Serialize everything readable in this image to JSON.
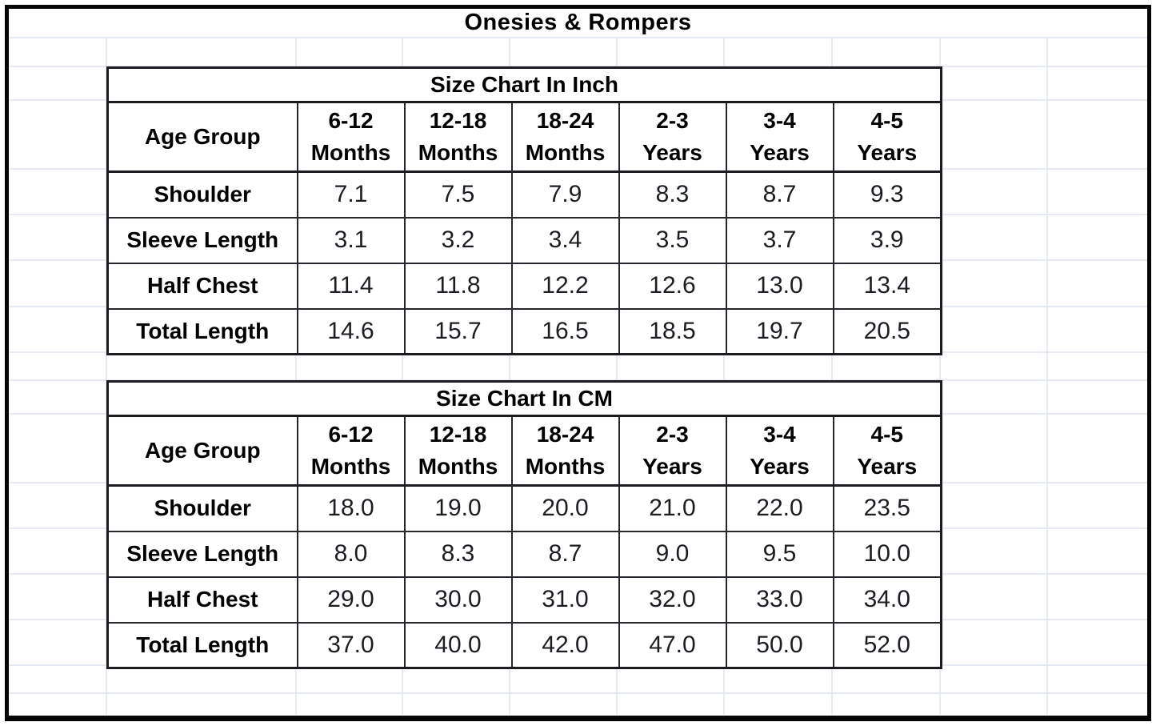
{
  "title": "Onesies & Rompers",
  "tables": [
    {
      "caption": "Size Chart In Inch",
      "corner_label": "Age Group",
      "age_columns": [
        {
          "range": "6-12",
          "unit": "Months"
        },
        {
          "range": "12-18",
          "unit": "Months"
        },
        {
          "range": "18-24",
          "unit": "Months"
        },
        {
          "range": "2-3",
          "unit": "Years"
        },
        {
          "range": "3-4",
          "unit": "Years"
        },
        {
          "range": "4-5",
          "unit": "Years"
        }
      ],
      "rows": [
        {
          "label": "Shoulder",
          "values": [
            "7.1",
            "7.5",
            "7.9",
            "8.3",
            "8.7",
            "9.3"
          ]
        },
        {
          "label": "Sleeve Length",
          "values": [
            "3.1",
            "3.2",
            "3.4",
            "3.5",
            "3.7",
            "3.9"
          ]
        },
        {
          "label": "Half Chest",
          "values": [
            "11.4",
            "11.8",
            "12.2",
            "12.6",
            "13.0",
            "13.4"
          ]
        },
        {
          "label": "Total Length",
          "values": [
            "14.6",
            "15.7",
            "16.5",
            "18.5",
            "19.7",
            "20.5"
          ]
        }
      ]
    },
    {
      "caption": "Size Chart In CM",
      "corner_label": "Age Group",
      "age_columns": [
        {
          "range": "6-12",
          "unit": "Months"
        },
        {
          "range": "12-18",
          "unit": "Months"
        },
        {
          "range": "18-24",
          "unit": "Months"
        },
        {
          "range": "2-3",
          "unit": "Years"
        },
        {
          "range": "3-4",
          "unit": "Years"
        },
        {
          "range": "4-5",
          "unit": "Years"
        }
      ],
      "rows": [
        {
          "label": "Shoulder",
          "values": [
            "18.0",
            "19.0",
            "20.0",
            "21.0",
            "22.0",
            "23.5"
          ]
        },
        {
          "label": "Sleeve Length",
          "values": [
            "8.0",
            "8.3",
            "8.7",
            "9.0",
            "9.5",
            "10.0"
          ]
        },
        {
          "label": "Half Chest",
          "values": [
            "29.0",
            "30.0",
            "31.0",
            "32.0",
            "33.0",
            "34.0"
          ]
        },
        {
          "label": "Total Length",
          "values": [
            "37.0",
            "40.0",
            "42.0",
            "47.0",
            "50.0",
            "52.0"
          ]
        }
      ]
    }
  ],
  "chart_data": [
    {
      "type": "table",
      "title": "Size Chart In Inch",
      "columns": [
        "Age Group",
        "6-12 Months",
        "12-18 Months",
        "18-24 Months",
        "2-3 Years",
        "3-4 Years",
        "4-5 Years"
      ],
      "rows": [
        [
          "Shoulder",
          "7.1",
          "7.5",
          "7.9",
          "8.3",
          "8.7",
          "9.3"
        ],
        [
          "Sleeve Length",
          "3.1",
          "3.2",
          "3.4",
          "3.5",
          "3.7",
          "3.9"
        ],
        [
          "Half Chest",
          "11.4",
          "11.8",
          "12.2",
          "12.6",
          "13.0",
          "13.4"
        ],
        [
          "Total Length",
          "14.6",
          "15.7",
          "16.5",
          "18.5",
          "19.7",
          "20.5"
        ]
      ]
    },
    {
      "type": "table",
      "title": "Size Chart In CM",
      "columns": [
        "Age Group",
        "6-12 Months",
        "12-18 Months",
        "18-24 Months",
        "2-3 Years",
        "3-4 Years",
        "4-5 Years"
      ],
      "rows": [
        [
          "Shoulder",
          "18.0",
          "19.0",
          "20.0",
          "21.0",
          "22.0",
          "23.5"
        ],
        [
          "Sleeve Length",
          "8.0",
          "8.3",
          "8.7",
          "9.0",
          "9.5",
          "10.0"
        ],
        [
          "Half Chest",
          "29.0",
          "30.0",
          "31.0",
          "32.0",
          "33.0",
          "34.0"
        ],
        [
          "Total Length",
          "37.0",
          "40.0",
          "42.0",
          "47.0",
          "50.0",
          "52.0"
        ]
      ]
    }
  ]
}
